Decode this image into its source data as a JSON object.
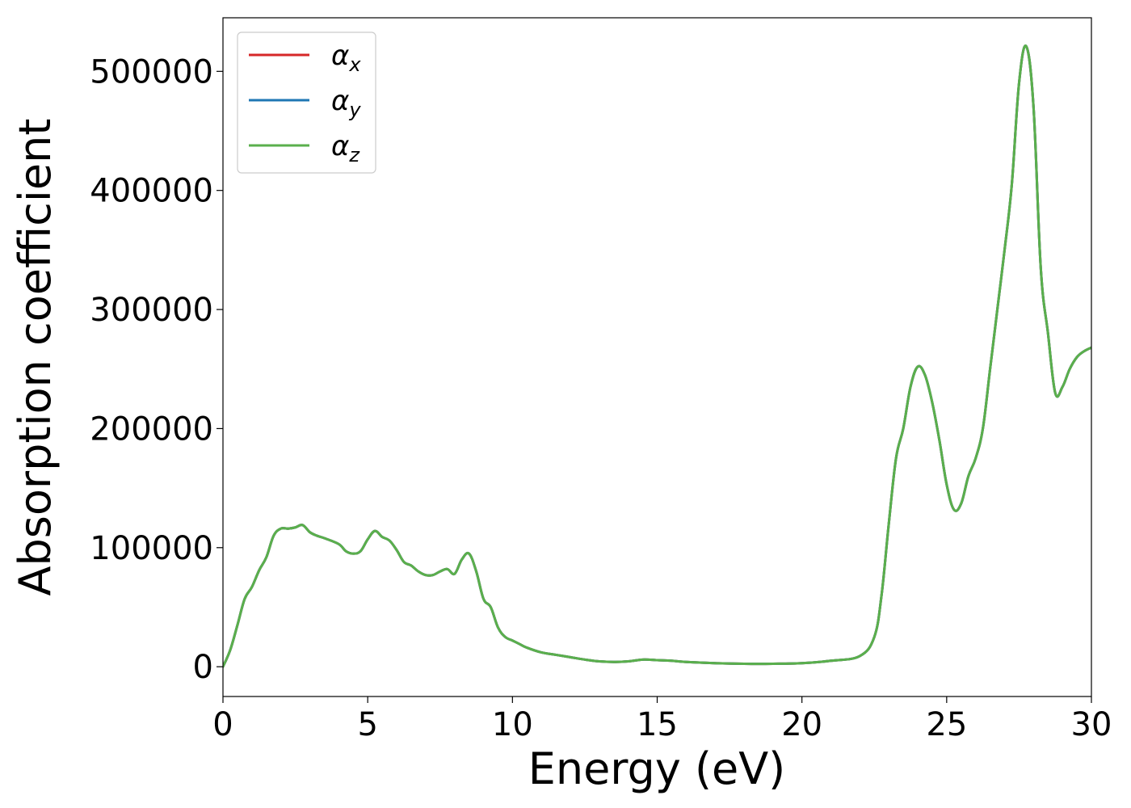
{
  "chart_data": {
    "type": "line",
    "xlabel": "Energy (eV)",
    "ylabel": "Absorption coefficient",
    "xlim": [
      0,
      30
    ],
    "ylim": [
      -25000,
      545000
    ],
    "xticks": [
      "0",
      "5",
      "10",
      "15",
      "20",
      "25",
      "30"
    ],
    "yticks": [
      "0",
      "100000",
      "200000",
      "300000",
      "400000",
      "500000"
    ],
    "grid": false,
    "legend_position": "top-left",
    "x": [
      0,
      0.25,
      0.5,
      0.75,
      1.0,
      1.25,
      1.5,
      1.75,
      2.0,
      2.25,
      2.5,
      2.75,
      3.0,
      3.25,
      3.5,
      4.0,
      4.25,
      4.5,
      4.75,
      5.0,
      5.25,
      5.5,
      5.75,
      6.0,
      6.25,
      6.5,
      6.75,
      7.0,
      7.25,
      7.5,
      7.75,
      8.0,
      8.25,
      8.5,
      8.75,
      9.0,
      9.25,
      9.5,
      9.75,
      10.0,
      10.25,
      10.5,
      11.0,
      11.5,
      12.0,
      12.5,
      13.0,
      13.5,
      14.0,
      14.5,
      15.0,
      15.5,
      16.0,
      17.0,
      18.0,
      19.0,
      20.0,
      21.0,
      22.0,
      22.5,
      22.75,
      23.0,
      23.25,
      23.5,
      23.75,
      24.0,
      24.25,
      24.5,
      24.75,
      25.0,
      25.25,
      25.5,
      25.75,
      26.0,
      26.25,
      26.5,
      26.75,
      27.0,
      27.25,
      27.5,
      27.75,
      28.0,
      28.25,
      28.5,
      28.75,
      29.0,
      29.25,
      29.5,
      29.75,
      30.0
    ],
    "series": [
      {
        "name": "αx",
        "color": "#d62728",
        "y": [
          0,
          14000,
          35000,
          57000,
          67000,
          81000,
          92000,
          110000,
          116000,
          116000,
          117000,
          119000,
          113000,
          110000,
          108000,
          103000,
          97000,
          95000,
          97000,
          107000,
          114000,
          109000,
          106000,
          98000,
          88000,
          85000,
          80000,
          77000,
          77000,
          80000,
          82000,
          78000,
          90000,
          95000,
          80000,
          57000,
          50000,
          33000,
          25000,
          22000,
          19000,
          16000,
          12000,
          10000,
          8000,
          6000,
          4500,
          4000,
          4500,
          6000,
          5500,
          5000,
          4000,
          3000,
          2500,
          2500,
          3000,
          5000,
          9000,
          25000,
          60000,
          120000,
          175000,
          200000,
          235000,
          252000,
          245000,
          222000,
          190000,
          153000,
          132000,
          137000,
          160000,
          175000,
          200000,
          250000,
          300000,
          350000,
          405000,
          490000,
          521000,
          470000,
          335000,
          280000,
          230000,
          235000,
          250000,
          260000,
          265000,
          268000
        ]
      },
      {
        "name": "αy",
        "color": "#1f77b4",
        "y": [
          0,
          14000,
          35000,
          57000,
          67000,
          81000,
          92000,
          110000,
          116000,
          116000,
          117000,
          119000,
          113000,
          110000,
          108000,
          103000,
          97000,
          95000,
          97000,
          107000,
          114000,
          109000,
          106000,
          98000,
          88000,
          85000,
          80000,
          77000,
          77000,
          80000,
          82000,
          78000,
          90000,
          95000,
          80000,
          57000,
          50000,
          33000,
          25000,
          22000,
          19000,
          16000,
          12000,
          10000,
          8000,
          6000,
          4500,
          4000,
          4500,
          6000,
          5500,
          5000,
          4000,
          3000,
          2500,
          2500,
          3000,
          5000,
          9000,
          25000,
          60000,
          120000,
          175000,
          200000,
          235000,
          252000,
          245000,
          222000,
          190000,
          153000,
          132000,
          137000,
          160000,
          175000,
          200000,
          250000,
          300000,
          350000,
          405000,
          490000,
          521000,
          470000,
          335000,
          280000,
          230000,
          235000,
          250000,
          260000,
          265000,
          268000
        ]
      },
      {
        "name": "αz",
        "color": "#5aaf4c",
        "y": [
          0,
          14000,
          35000,
          57000,
          67000,
          81000,
          92000,
          110000,
          116000,
          116000,
          117000,
          119000,
          113000,
          110000,
          108000,
          103000,
          97000,
          95000,
          97000,
          107000,
          114000,
          109000,
          106000,
          98000,
          88000,
          85000,
          80000,
          77000,
          77000,
          80000,
          82000,
          78000,
          90000,
          95000,
          80000,
          57000,
          50000,
          33000,
          25000,
          22000,
          19000,
          16000,
          12000,
          10000,
          8000,
          6000,
          4500,
          4000,
          4500,
          6000,
          5500,
          5000,
          4000,
          3000,
          2500,
          2500,
          3000,
          5000,
          9000,
          25000,
          60000,
          120000,
          175000,
          200000,
          235000,
          252000,
          245000,
          222000,
          190000,
          153000,
          132000,
          137000,
          160000,
          175000,
          200000,
          250000,
          300000,
          350000,
          405000,
          490000,
          521000,
          470000,
          335000,
          280000,
          230000,
          235000,
          250000,
          260000,
          265000,
          268000
        ]
      }
    ]
  }
}
